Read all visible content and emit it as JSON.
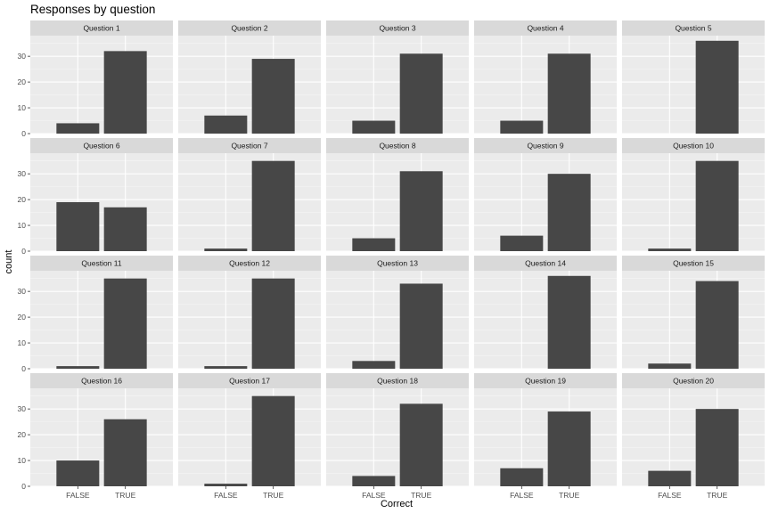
{
  "chart_data": {
    "type": "bar",
    "title": "Responses by question",
    "xlabel": "Correct",
    "ylabel": "count",
    "categories": [
      "FALSE",
      "TRUE"
    ],
    "ylim": [
      0,
      38
    ],
    "yticks": [
      0,
      10,
      20,
      30
    ],
    "grid": true,
    "bar_color": "#474747",
    "panel_background": "#ebebeb",
    "strip_background": "#d9d9d9",
    "facets": [
      {
        "label": "Question 1",
        "values": [
          4,
          32
        ]
      },
      {
        "label": "Question 2",
        "values": [
          7,
          29
        ]
      },
      {
        "label": "Question 3",
        "values": [
          5,
          31
        ]
      },
      {
        "label": "Question 4",
        "values": [
          5,
          31
        ]
      },
      {
        "label": "Question 5",
        "values": [
          0,
          36
        ]
      },
      {
        "label": "Question 6",
        "values": [
          19,
          17
        ]
      },
      {
        "label": "Question 7",
        "values": [
          1,
          35
        ]
      },
      {
        "label": "Question 8",
        "values": [
          5,
          31
        ]
      },
      {
        "label": "Question 9",
        "values": [
          6,
          30
        ]
      },
      {
        "label": "Question 10",
        "values": [
          1,
          35
        ]
      },
      {
        "label": "Question 11",
        "values": [
          1,
          35
        ]
      },
      {
        "label": "Question 12",
        "values": [
          1,
          35
        ]
      },
      {
        "label": "Question 13",
        "values": [
          3,
          33
        ]
      },
      {
        "label": "Question 14",
        "values": [
          0,
          36
        ]
      },
      {
        "label": "Question 15",
        "values": [
          2,
          34
        ]
      },
      {
        "label": "Question 16",
        "values": [
          10,
          26
        ]
      },
      {
        "label": "Question 17",
        "values": [
          1,
          35
        ]
      },
      {
        "label": "Question 18",
        "values": [
          4,
          32
        ]
      },
      {
        "label": "Question 19",
        "values": [
          7,
          29
        ]
      },
      {
        "label": "Question 20",
        "values": [
          6,
          30
        ]
      }
    ]
  }
}
